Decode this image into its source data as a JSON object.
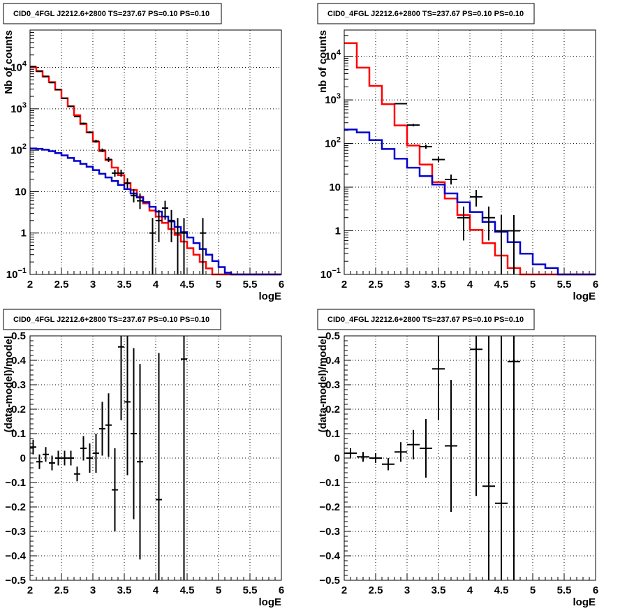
{
  "chart_data": [
    {
      "type": "histogram",
      "title": "CID0_4FGL J2212.6+2800 TS=237.67 PS=0.10 PS=0.10",
      "xlabel": "logE",
      "ylabel": "Nb of counts",
      "log_y": true,
      "xlim": [
        2,
        6
      ],
      "ylim": [
        0.1,
        80000
      ],
      "xticks": [
        "2",
        "2.5",
        "3",
        "3.5",
        "4",
        "4.5",
        "5",
        "5.5",
        "6"
      ],
      "yticks": [
        {
          "v": 0.1,
          "label": "10",
          "sup": "−1"
        },
        {
          "v": 1,
          "label": "1",
          "sup": ""
        },
        {
          "v": 10,
          "label": "10",
          "sup": ""
        },
        {
          "v": 100,
          "label": "10",
          "sup": "2"
        },
        {
          "v": 1000,
          "label": "10",
          "sup": "3"
        },
        {
          "v": 10000,
          "label": "10",
          "sup": "4"
        }
      ],
      "grid": true,
      "bin_width": 0.1,
      "series": [
        {
          "kind": "step",
          "color": "#ff0000",
          "values": [
            10000,
            8200,
            6000,
            4400,
            2900,
            1800,
            1150,
            700,
            430,
            270,
            160,
            95,
            58,
            38,
            25,
            16,
            11,
            7.5,
            5.2,
            3.5,
            2.5,
            1.75,
            1.25,
            0.9,
            0.62,
            0.43,
            0.3,
            0.2,
            0.14,
            0.1,
            0.1,
            0.1,
            0.1,
            0.1,
            0.1,
            0.1,
            0.1,
            0.1,
            0.1,
            0.1
          ]
        },
        {
          "kind": "step",
          "color": "#0000cc",
          "values": [
            110,
            108,
            103,
            95,
            85,
            75,
            65,
            55,
            47,
            40,
            33,
            27,
            22,
            18,
            14.5,
            11.5,
            9,
            7.2,
            5.6,
            4.3,
            3.3,
            2.5,
            1.9,
            1.4,
            1.05,
            0.78,
            0.57,
            0.41,
            0.3,
            0.21,
            0.15,
            0.11,
            0.1,
            0.1,
            0.1,
            0.1,
            0.1,
            0.1,
            0.1,
            0.1
          ]
        },
        {
          "kind": "points",
          "color": "#000000",
          "points": [
            {
              "x": 2.05,
              "y": 10500,
              "lo": 10300,
              "hi": 10700
            },
            {
              "x": 2.15,
              "y": 8000,
              "lo": 7800,
              "hi": 8200
            },
            {
              "x": 2.25,
              "y": 6100,
              "lo": 5950,
              "hi": 6250
            },
            {
              "x": 2.35,
              "y": 4300,
              "lo": 4150,
              "hi": 4450
            },
            {
              "x": 2.45,
              "y": 2900,
              "lo": 2800,
              "hi": 3000
            },
            {
              "x": 2.55,
              "y": 1800,
              "lo": 1740,
              "hi": 1860
            },
            {
              "x": 2.65,
              "y": 1150,
              "lo": 1110,
              "hi": 1190
            },
            {
              "x": 2.75,
              "y": 650,
              "lo": 625,
              "hi": 675
            },
            {
              "x": 2.85,
              "y": 445,
              "lo": 425,
              "hi": 465
            },
            {
              "x": 2.95,
              "y": 270,
              "lo": 255,
              "hi": 285
            },
            {
              "x": 3.05,
              "y": 165,
              "lo": 153,
              "hi": 178
            },
            {
              "x": 3.15,
              "y": 100,
              "lo": 90,
              "hi": 110
            },
            {
              "x": 3.25,
              "y": 60,
              "lo": 52,
              "hi": 68
            },
            {
              "x": 3.35,
              "y": 28,
              "lo": 23,
              "hi": 34
            },
            {
              "x": 3.45,
              "y": 28,
              "lo": 23,
              "hi": 34
            },
            {
              "x": 3.55,
              "y": 16,
              "lo": 12,
              "hi": 21
            },
            {
              "x": 3.65,
              "y": 8,
              "lo": 5.5,
              "hi": 11.5
            },
            {
              "x": 3.75,
              "y": 6,
              "lo": 3.8,
              "hi": 9
            },
            {
              "x": 3.95,
              "y": 1,
              "lo": 0.1,
              "hi": 2.3
            },
            {
              "x": 4.05,
              "y": 2,
              "lo": 0.6,
              "hi": 3.6
            },
            {
              "x": 4.15,
              "y": 4,
              "lo": 2.1,
              "hi": 6
            },
            {
              "x": 4.25,
              "y": 2,
              "lo": 0.6,
              "hi": 3.6
            },
            {
              "x": 4.35,
              "y": 1,
              "lo": 0.1,
              "hi": 2.3
            },
            {
              "x": 4.45,
              "y": 1,
              "lo": 0.1,
              "hi": 2.3
            },
            {
              "x": 4.75,
              "y": 1,
              "lo": 0.1,
              "hi": 2.3
            }
          ]
        }
      ]
    },
    {
      "type": "histogram",
      "title": "CID0_4FGL J2212.6+2800 TS=237.67 PS=0.10 PS=0.10",
      "xlabel": "logE",
      "ylabel": "nb of counts",
      "log_y": true,
      "xlim": [
        2,
        6
      ],
      "ylim": [
        0.1,
        40000
      ],
      "xticks": [
        "2",
        "2.5",
        "3",
        "3.5",
        "4",
        "4.5",
        "5",
        "5.5",
        "6"
      ],
      "yticks": [
        {
          "v": 0.1,
          "label": "10",
          "sup": "−1"
        },
        {
          "v": 1,
          "label": "1",
          "sup": ""
        },
        {
          "v": 10,
          "label": "10",
          "sup": ""
        },
        {
          "v": 100,
          "label": "10",
          "sup": "2"
        },
        {
          "v": 1000,
          "label": "10",
          "sup": "3"
        },
        {
          "v": 10000,
          "label": "10",
          "sup": "4"
        }
      ],
      "grid": true,
      "bin_width": 0.2,
      "series": [
        {
          "kind": "step",
          "color": "#ff0000",
          "values": [
            20000,
            5500,
            2100,
            800,
            260,
            90,
            33,
            13,
            5.5,
            2.3,
            1.05,
            0.52,
            0.27,
            0.14,
            0.1,
            0.1,
            0.1,
            0.1,
            0.1,
            0.1
          ]
        },
        {
          "kind": "step",
          "color": "#0000cc",
          "values": [
            210,
            180,
            120,
            75,
            45,
            28,
            18,
            11.5,
            7.2,
            4.5,
            2.7,
            1.6,
            0.95,
            0.55,
            0.3,
            0.17,
            0.14,
            0.1,
            0.1,
            0.1
          ]
        },
        {
          "kind": "points",
          "color": "#000000",
          "points": [
            {
              "x": 2.9,
              "y": 820,
              "lo": 790,
              "hi": 850
            },
            {
              "x": 3.1,
              "y": 265,
              "lo": 248,
              "hi": 282
            },
            {
              "x": 3.3,
              "y": 85,
              "lo": 76,
              "hi": 94
            },
            {
              "x": 3.5,
              "y": 43,
              "lo": 37,
              "hi": 50
            },
            {
              "x": 3.7,
              "y": 15,
              "lo": 11.5,
              "hi": 19.5
            },
            {
              "x": 3.9,
              "y": 2,
              "lo": 0.6,
              "hi": 3.6
            },
            {
              "x": 4.1,
              "y": 6,
              "lo": 3.6,
              "hi": 8.6
            },
            {
              "x": 4.3,
              "y": 2,
              "lo": 0.6,
              "hi": 3.6
            },
            {
              "x": 4.5,
              "y": 1,
              "lo": 0.1,
              "hi": 2.3
            },
            {
              "x": 4.7,
              "y": 1,
              "lo": 0.1,
              "hi": 2.3
            }
          ]
        }
      ]
    },
    {
      "type": "scatter",
      "title": "CID0_4FGL J2212.6+2800 TS=237.67 PS=0.10 PS=0.10",
      "xlabel": "logE",
      "ylabel": "(data-model)/model",
      "log_y": false,
      "xlim": [
        2,
        6
      ],
      "ylim": [
        -0.5,
        0.5
      ],
      "xticks": [
        "2",
        "2.5",
        "3",
        "3.5",
        "4",
        "4.5",
        "5",
        "5.5",
        "6"
      ],
      "yticks": [
        "−0.5",
        "−0.4",
        "−0.3",
        "−0.2",
        "−0.1",
        "0",
        "0.1",
        "0.2",
        "0.3",
        "0.4",
        "0.5"
      ],
      "grid": true,
      "bin_width": 0.1,
      "series": [
        {
          "kind": "points",
          "color": "#000000",
          "points": [
            {
              "x": 2.05,
              "y": 0.045,
              "err": 0.03
            },
            {
              "x": 2.15,
              "y": -0.015,
              "err": 0.03
            },
            {
              "x": 2.25,
              "y": 0.015,
              "err": 0.03
            },
            {
              "x": 2.35,
              "y": -0.02,
              "err": 0.03
            },
            {
              "x": 2.45,
              "y": 0.0,
              "err": 0.03
            },
            {
              "x": 2.55,
              "y": 0.0,
              "err": 0.03
            },
            {
              "x": 2.65,
              "y": 0.0,
              "err": 0.03
            },
            {
              "x": 2.75,
              "y": -0.065,
              "err": 0.03
            },
            {
              "x": 2.85,
              "y": 0.04,
              "err": 0.05
            },
            {
              "x": 2.95,
              "y": 0.0,
              "err": 0.06
            },
            {
              "x": 3.05,
              "y": 0.02,
              "err": 0.08
            },
            {
              "x": 3.15,
              "y": 0.12,
              "err": 0.11
            },
            {
              "x": 3.25,
              "y": 0.135,
              "err": 0.13
            },
            {
              "x": 3.35,
              "y": -0.13,
              "err": 0.17
            },
            {
              "x": 3.45,
              "y": 0.455,
              "err": 0.3
            },
            {
              "x": 3.55,
              "y": 0.23,
              "err": 0.3
            },
            {
              "x": 3.65,
              "y": 0.1,
              "err": 0.35
            },
            {
              "x": 3.75,
              "y": -0.015,
              "err": 0.4
            },
            {
              "x": 4.05,
              "y": -0.17,
              "err": 0.6
            },
            {
              "x": 4.45,
              "y": 0.405,
              "err": 1.0
            }
          ]
        }
      ]
    },
    {
      "type": "scatter",
      "title": "CID0_4FGL J2212.6+2800 TS=237.67 PS=0.10 PS=0.10",
      "xlabel": "logE",
      "ylabel": "(data-model)/model",
      "log_y": false,
      "xlim": [
        2,
        6
      ],
      "ylim": [
        -0.5,
        0.5
      ],
      "xticks": [
        "2",
        "2.5",
        "3",
        "3.5",
        "4",
        "4.5",
        "5",
        "5.5",
        "6"
      ],
      "yticks": [
        "−0.5",
        "−0.4",
        "−0.3",
        "−0.2",
        "−0.1",
        "0",
        "0.1",
        "0.2",
        "0.3",
        "0.4",
        "0.5"
      ],
      "grid": true,
      "bin_width": 0.2,
      "series": [
        {
          "kind": "points",
          "color": "#000000",
          "points": [
            {
              "x": 2.1,
              "y": 0.02,
              "err": 0.02
            },
            {
              "x": 2.3,
              "y": 0.005,
              "err": 0.02
            },
            {
              "x": 2.5,
              "y": 0.0,
              "err": 0.02
            },
            {
              "x": 2.7,
              "y": -0.025,
              "err": 0.025
            },
            {
              "x": 2.9,
              "y": 0.025,
              "err": 0.04
            },
            {
              "x": 3.1,
              "y": 0.055,
              "err": 0.06
            },
            {
              "x": 3.3,
              "y": 0.04,
              "err": 0.12
            },
            {
              "x": 3.5,
              "y": 0.365,
              "err": 0.21
            },
            {
              "x": 3.7,
              "y": 0.05,
              "err": 0.27
            },
            {
              "x": 4.1,
              "y": 0.445,
              "err": 0.6
            },
            {
              "x": 4.3,
              "y": -0.115,
              "err": 1.0
            },
            {
              "x": 4.5,
              "y": -0.185,
              "err": 1.0
            },
            {
              "x": 4.7,
              "y": 0.395,
              "err": 1.0
            }
          ]
        }
      ]
    }
  ]
}
